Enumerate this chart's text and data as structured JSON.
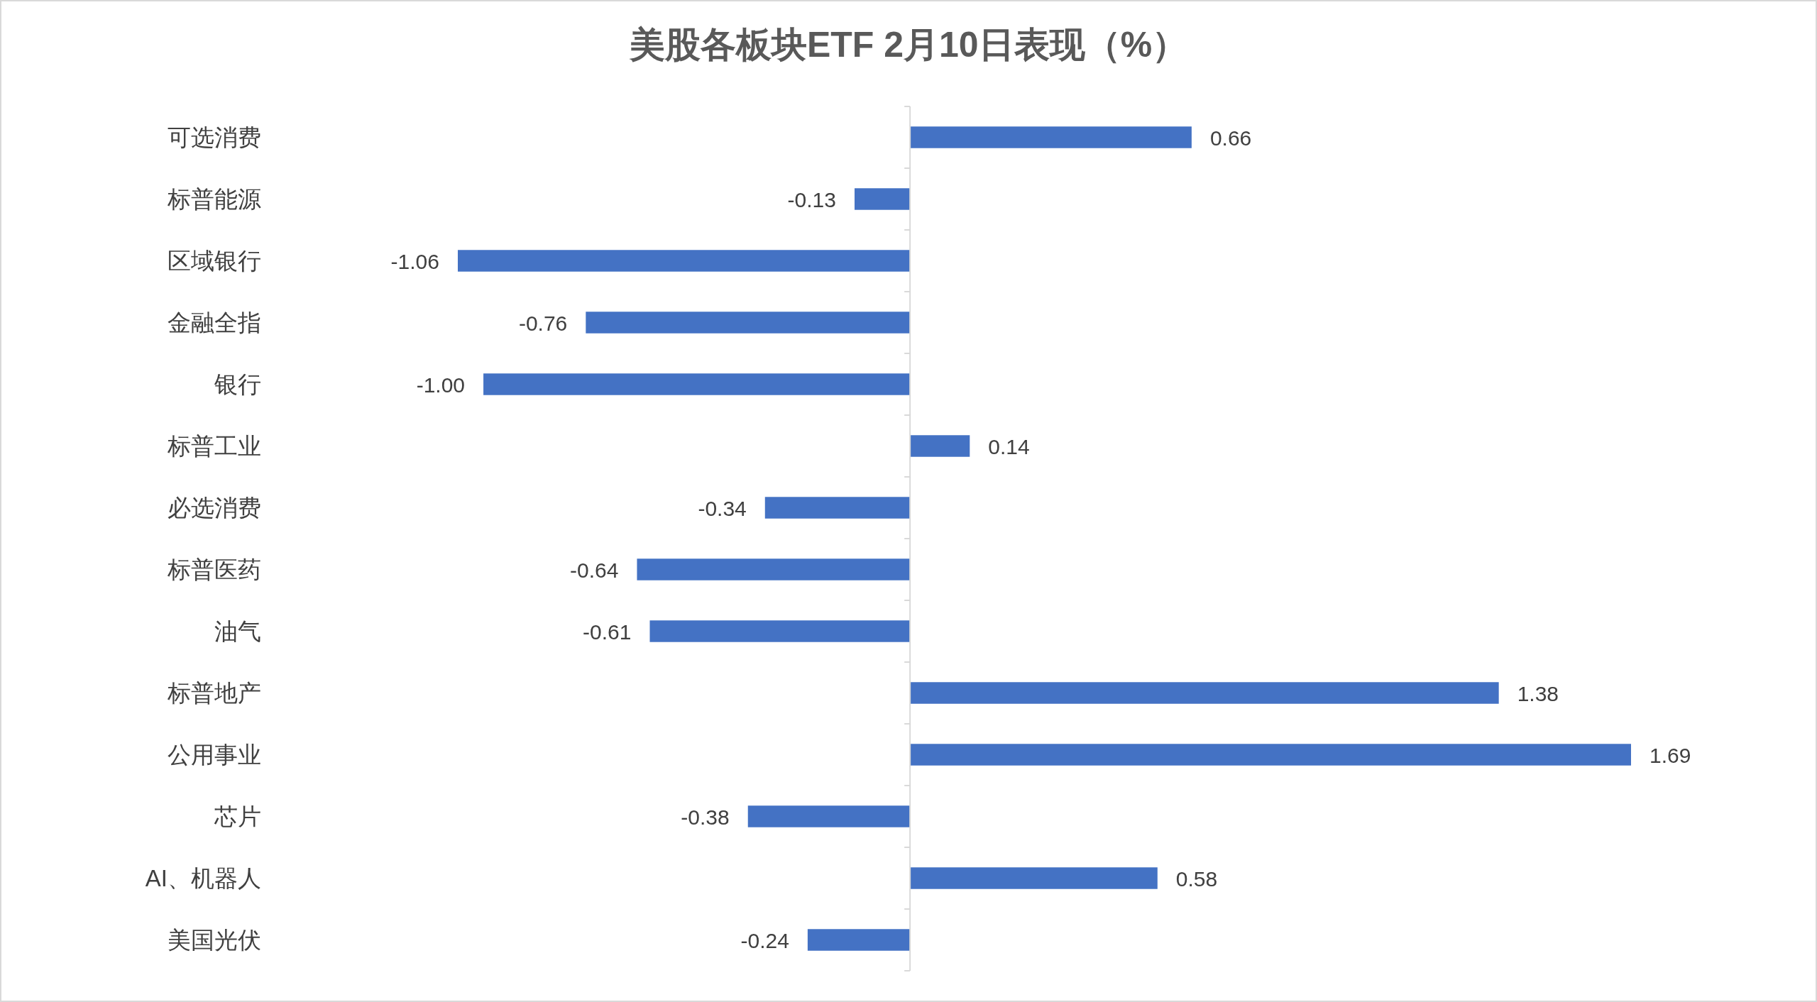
{
  "chart_data": {
    "type": "bar",
    "orientation": "horizontal",
    "title": "美股各板块ETF  2月10日表现（%）",
    "categories": [
      "可选消费",
      "标普能源",
      "区域银行",
      "金融全指",
      "银行",
      "标普工业",
      "必选消费",
      "标普医药",
      "油气",
      "标普地产",
      "公用事业",
      "芯片",
      "AI、机器人",
      "美国光伏"
    ],
    "values": [
      0.66,
      -0.13,
      -1.06,
      -0.76,
      -1.0,
      0.14,
      -0.34,
      -0.64,
      -0.61,
      1.38,
      1.69,
      -0.38,
      0.58,
      -0.24
    ],
    "value_labels": [
      "0.66",
      "-0.13",
      "-1.06",
      "-0.76",
      "-1.00",
      "0.14",
      "-0.34",
      "-0.64",
      "-0.61",
      "1.38",
      "1.69",
      "-0.38",
      "0.58",
      "-0.24"
    ],
    "color": "#4472c4"
  }
}
